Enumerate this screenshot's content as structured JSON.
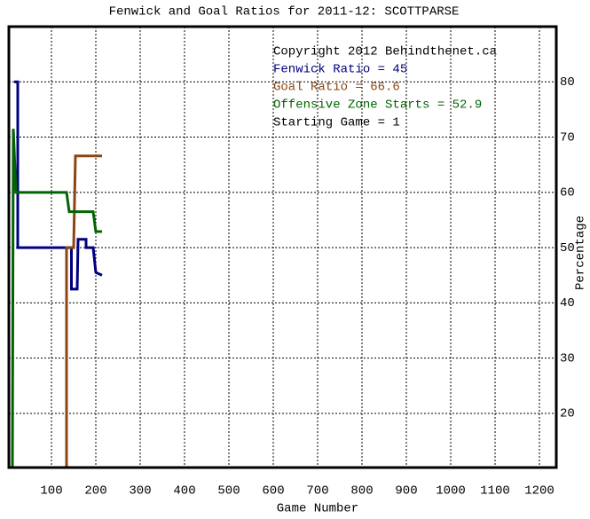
{
  "chart_data": {
    "type": "line",
    "title": "Fenwick and Goal Ratios for 2011-12: SCOTTPARSE",
    "x_label": "Game Number",
    "y_label": "Percentage",
    "annotation": "Copyright 2012 Behindthenet.ca",
    "annotation_color": "#000000",
    "footer_text": "Starting Game = 1",
    "xlim": [
      4,
      1238
    ],
    "xticks": [
      100,
      200,
      300,
      400,
      500,
      600,
      700,
      800,
      900,
      1000,
      1100,
      1200
    ],
    "ylim": [
      10.2,
      90
    ],
    "yticks": [
      20,
      30,
      40,
      50,
      60,
      70,
      80
    ],
    "grid": true,
    "series": [
      {
        "name": "Fenwick Ratio = 45",
        "color": "#000080",
        "x": [
          16,
          24,
          24,
          145,
          145,
          158,
          160,
          178,
          178,
          194,
          200,
          214
        ],
        "values": [
          80,
          80,
          50,
          50,
          42.5,
          42.5,
          51.5,
          51.5,
          50,
          50,
          45.5,
          45
        ]
      },
      {
        "name": "Goal Ratio = 66.6",
        "color": "#8B4513",
        "x": [
          134,
          134,
          150,
          154,
          214
        ],
        "values": [
          10.2,
          50,
          50,
          66.6,
          66.6
        ]
      },
      {
        "name": "Offensive Zone Starts = 52.9",
        "color": "#006400",
        "x": [
          12,
          14,
          20,
          134,
          140,
          194,
          200,
          214
        ],
        "values": [
          10.2,
          71.5,
          60,
          60,
          56.5,
          56.5,
          52.9,
          52.9
        ]
      }
    ]
  }
}
